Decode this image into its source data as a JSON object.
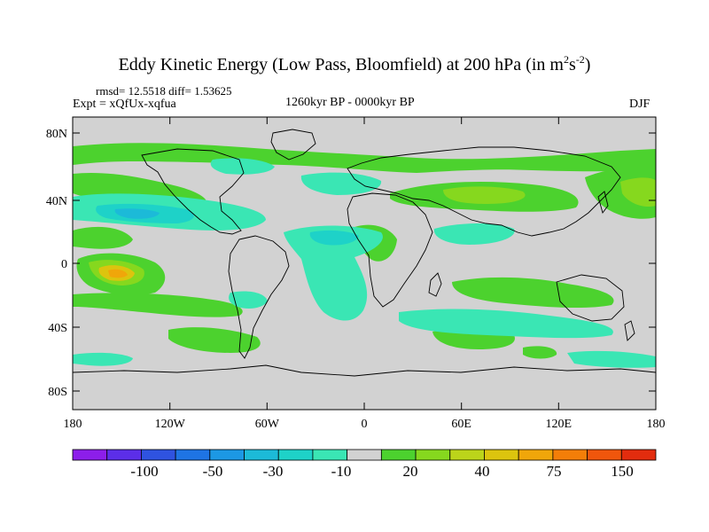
{
  "header": {
    "title_main": "Eddy Kinetic Energy (Low Pass, Bloomfield) at 200 hPa (in m",
    "title_exp1": "2",
    "title_mid": "s",
    "title_exp2": "-2",
    "title_close": ")",
    "stats": "rmsd= 12.5518 diff= 1.53625",
    "experiment": "Expt = xQfUx-xqfua",
    "period": "1260kyr BP - 0000kyr BP",
    "season": "DJF"
  },
  "map": {
    "lat_labels": [
      "80N",
      "40N",
      "0",
      "40S",
      "80S"
    ],
    "lon_labels": [
      "180",
      "120W",
      "60W",
      "0",
      "60E",
      "120E",
      "180"
    ],
    "background_color": "#d2d2d2"
  },
  "colorbar": {
    "colors": [
      "#8c1eea",
      "#5c2ee8",
      "#2f53e0",
      "#1e74e4",
      "#1c98e4",
      "#1cbad8",
      "#1ed2c8",
      "#3ae6b4",
      "#d2d2d2",
      "#4cd22e",
      "#86d81e",
      "#bcd41a",
      "#dcc40e",
      "#f0a60a",
      "#f47e08",
      "#f0560c",
      "#e22c0e"
    ],
    "labels": [
      "-100",
      "-50",
      "-30",
      "-10",
      "20",
      "40",
      "75",
      "150"
    ]
  }
}
